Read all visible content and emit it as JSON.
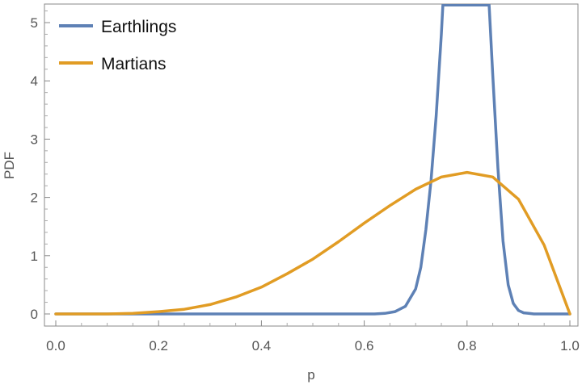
{
  "chart_data": {
    "type": "line",
    "xlabel": "p",
    "ylabel": "PDF",
    "xlim": [
      0,
      1
    ],
    "ylim": [
      -0.15,
      5.3
    ],
    "x_ticks": [
      0.0,
      0.2,
      0.4,
      0.6,
      0.8,
      1.0
    ],
    "x_tick_labels": [
      "0.0",
      "0.2",
      "0.4",
      "0.6",
      "0.8",
      "1.0"
    ],
    "y_ticks": [
      0,
      1,
      2,
      3,
      4,
      5
    ],
    "y_tick_labels": [
      "0",
      "1",
      "2",
      "3",
      "4",
      "5"
    ],
    "grid": false,
    "legend_position": "top-left",
    "series": [
      {
        "name": "Earthlings",
        "color": "#5e81b5",
        "x": [
          0.0,
          0.6,
          0.62,
          0.64,
          0.66,
          0.68,
          0.7,
          0.71,
          0.72,
          0.73,
          0.74,
          0.75,
          0.753,
          0.843,
          0.85,
          0.86,
          0.87,
          0.88,
          0.89,
          0.9,
          0.91,
          0.92,
          0.93,
          0.95,
          1.0
        ],
        "y": [
          0.0,
          0.0,
          0.0,
          0.01,
          0.04,
          0.13,
          0.43,
          0.8,
          1.45,
          2.3,
          3.4,
          4.8,
          5.3,
          5.3,
          4.1,
          2.5,
          1.25,
          0.5,
          0.18,
          0.06,
          0.02,
          0.01,
          0.0,
          0.0,
          0.0
        ]
      },
      {
        "name": "Martians",
        "color": "#e19c24",
        "x": [
          0.0,
          0.05,
          0.1,
          0.15,
          0.2,
          0.25,
          0.3,
          0.35,
          0.4,
          0.45,
          0.5,
          0.55,
          0.6,
          0.65,
          0.7,
          0.75,
          0.8,
          0.85,
          0.9,
          0.95,
          1.0
        ],
        "y": [
          0.0,
          0.0,
          0.0,
          0.01,
          0.04,
          0.08,
          0.16,
          0.29,
          0.46,
          0.69,
          0.94,
          1.24,
          1.56,
          1.86,
          2.14,
          2.35,
          2.43,
          2.35,
          1.97,
          1.18,
          0.0
        ]
      }
    ]
  }
}
